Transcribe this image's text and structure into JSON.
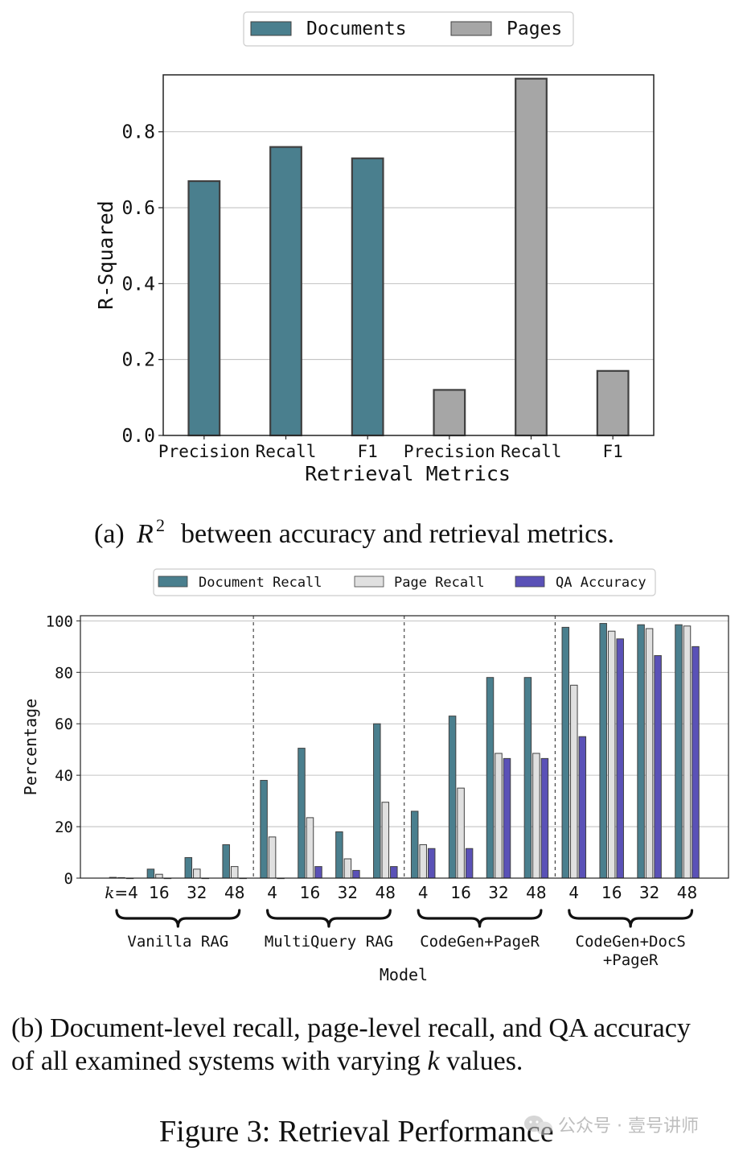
{
  "chart_data": [
    {
      "type": "bar",
      "xlabel": "Retrieval Metrics",
      "ylabel": "R-Squared",
      "ylim": [
        0,
        0.95
      ],
      "yticks": [
        "0.0",
        "0.2",
        "0.4",
        "0.6",
        "0.8"
      ],
      "categories": [
        "Precision",
        "Recall",
        "F1",
        "Precision",
        "Recall",
        "F1"
      ],
      "series": [
        {
          "name": "Documents",
          "color": "#4a7f8e",
          "values": [
            0.67,
            0.76,
            0.73,
            null,
            null,
            null
          ]
        },
        {
          "name": "Pages",
          "color": "#a6a6a6",
          "values": [
            null,
            null,
            null,
            0.12,
            0.94,
            0.17
          ]
        }
      ],
      "legend_position": "top-center",
      "grid": "horizontal"
    },
    {
      "type": "bar",
      "xlabel": "Model",
      "ylabel": "Percentage",
      "ylim": [
        0,
        102
      ],
      "yticks": [
        "0",
        "20",
        "40",
        "60",
        "80",
        "100"
      ],
      "groups": [
        {
          "name": "Vanilla RAG",
          "ks": [
            "k=4",
            "16",
            "32",
            "48"
          ]
        },
        {
          "name": "MultiQuery RAG",
          "ks": [
            "4",
            "16",
            "32",
            "48"
          ]
        },
        {
          "name": "CodeGen+PageR",
          "ks": [
            "4",
            "16",
            "32",
            "48"
          ]
        },
        {
          "name_lines": [
            "CodeGen+DocS",
            "+PageR"
          ],
          "ks": [
            "4",
            "16",
            "32",
            "48"
          ]
        }
      ],
      "series": [
        {
          "name": "Document Recall",
          "color": "#4a7f8e",
          "values": [
            0.3,
            3.5,
            8,
            13,
            38,
            50.5,
            18,
            60,
            26,
            63,
            78,
            78,
            97.5,
            99,
            98.5,
            98.5
          ]
        },
        {
          "name": "Page Recall",
          "color": "#e0e0e0",
          "values": [
            0.2,
            1.5,
            3.5,
            4.5,
            16,
            23.5,
            7.5,
            29.5,
            13,
            35,
            48.5,
            48.5,
            75,
            96,
            97,
            98
          ]
        },
        {
          "name": "QA Accuracy",
          "color": "#5a51b7",
          "values": [
            0,
            0,
            0,
            0,
            0,
            4.5,
            3,
            4.5,
            11.5,
            11.5,
            46.5,
            46.5,
            55,
            93,
            86.5,
            90
          ]
        }
      ],
      "legend_position": "top-center",
      "grid": "horizontal"
    }
  ],
  "captions": {
    "a_prefix": "(a)",
    "a_suffix": "between accuracy and retrieval metrics.",
    "b_line1": "(b) Document-level recall, page-level recall, and QA accuracy",
    "b_line2_before": "of all examined systems with varying",
    "b_line2_var": "k",
    "b_line2_after": "values.",
    "figure": "Figure 3: Retrieval Performance"
  },
  "watermark": {
    "text": "公众号 · 壹号讲师"
  }
}
